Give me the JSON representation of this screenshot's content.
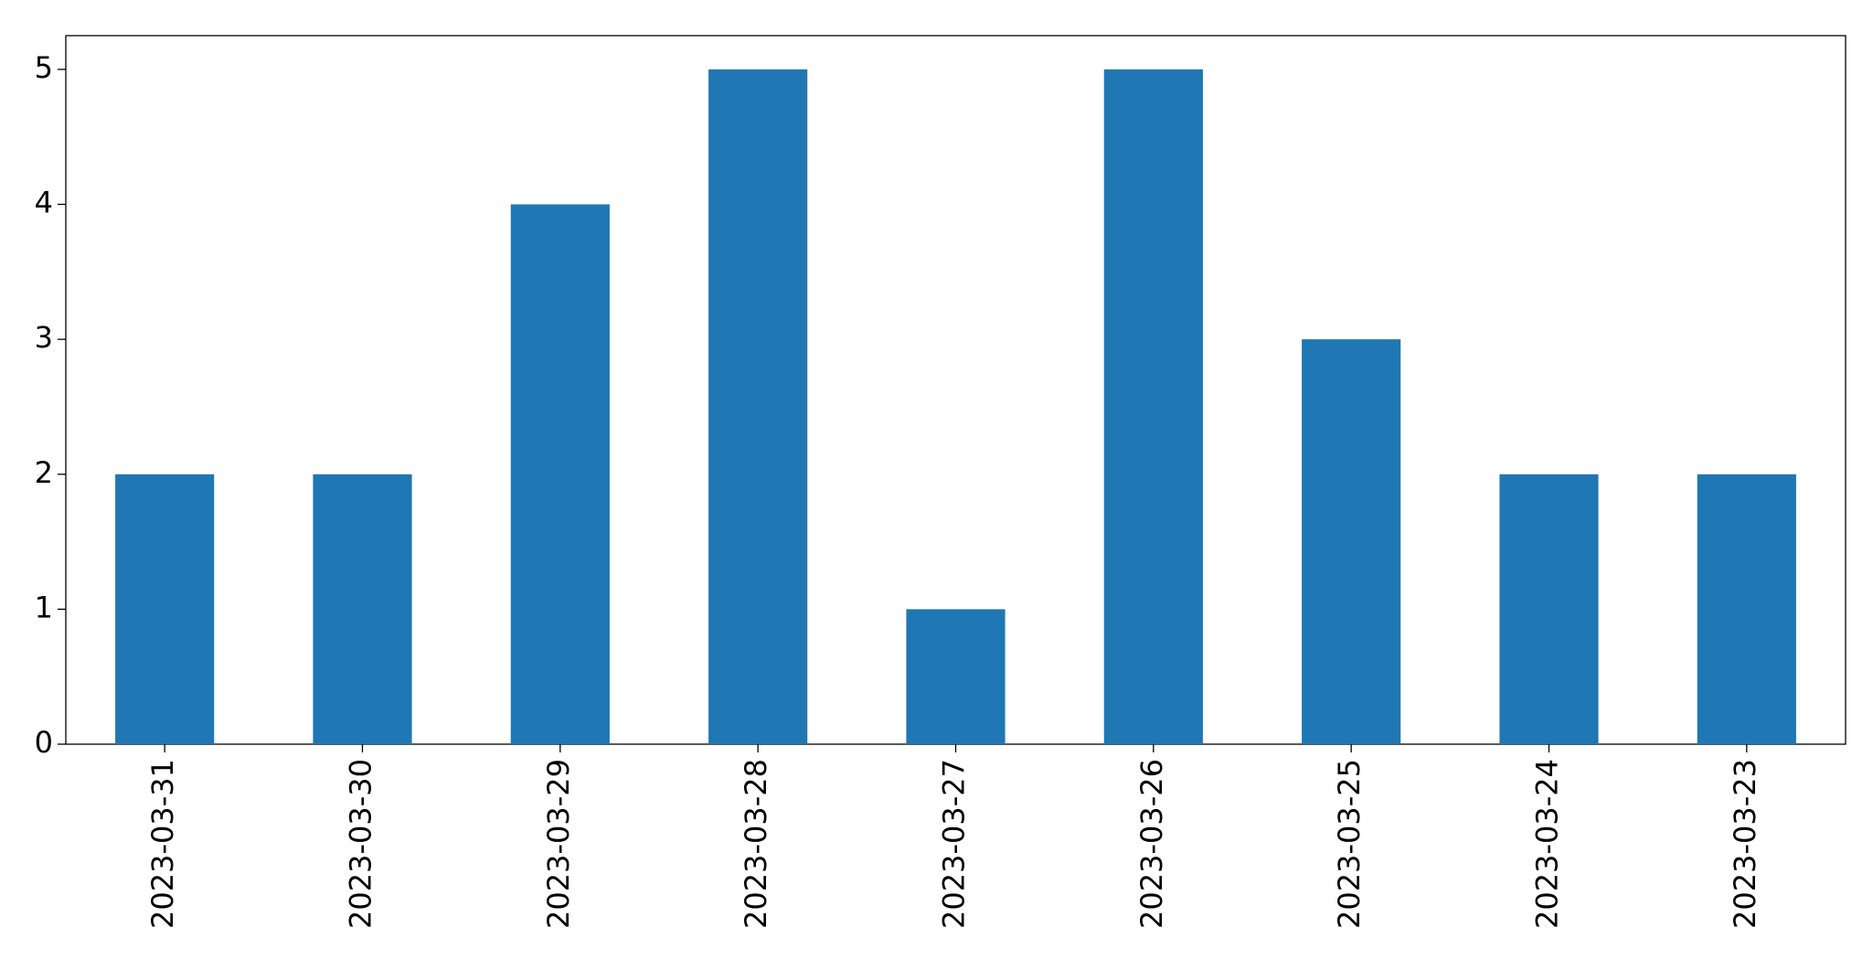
{
  "chart_data": {
    "type": "bar",
    "categories": [
      "2023-03-31",
      "2023-03-30",
      "2023-03-29",
      "2023-03-28",
      "2023-03-27",
      "2023-03-26",
      "2023-03-25",
      "2023-03-24",
      "2023-03-23"
    ],
    "values": [
      2,
      2,
      4,
      5,
      1,
      5,
      3,
      2,
      2
    ],
    "color": "#1f77b4",
    "ylim": [
      0,
      5.25
    ],
    "yticks": [
      0,
      1,
      2,
      3,
      4,
      5
    ],
    "grid": false
  }
}
